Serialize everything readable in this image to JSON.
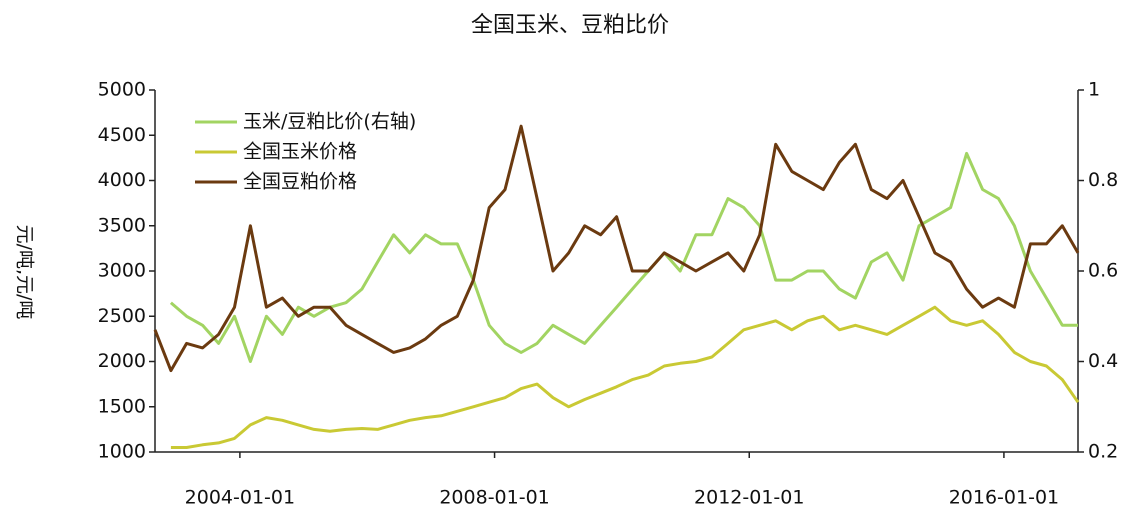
{
  "chart_data": {
    "type": "line",
    "title": "全国玉米、豆粕比价",
    "y_label": "元/吨,元/吨",
    "x": [
      "2002-09-01",
      "2002-12-01",
      "2003-03-01",
      "2003-06-01",
      "2003-09-01",
      "2003-12-01",
      "2004-03-01",
      "2004-06-01",
      "2004-09-01",
      "2004-12-01",
      "2005-03-01",
      "2005-06-01",
      "2005-09-01",
      "2005-12-01",
      "2006-03-01",
      "2006-06-01",
      "2006-09-01",
      "2006-12-01",
      "2007-03-01",
      "2007-06-01",
      "2007-09-01",
      "2007-12-01",
      "2008-03-01",
      "2008-06-01",
      "2008-09-01",
      "2008-12-01",
      "2009-03-01",
      "2009-06-01",
      "2009-09-01",
      "2009-12-01",
      "2010-03-01",
      "2010-06-01",
      "2010-09-01",
      "2010-12-01",
      "2011-03-01",
      "2011-06-01",
      "2011-09-01",
      "2011-12-01",
      "2012-03-01",
      "2012-06-01",
      "2012-09-01",
      "2012-12-01",
      "2013-03-01",
      "2013-06-01",
      "2013-09-01",
      "2013-12-01",
      "2014-03-01",
      "2014-06-01",
      "2014-09-01",
      "2014-12-01",
      "2015-03-01",
      "2015-06-01",
      "2015-09-01",
      "2015-12-01",
      "2016-03-01",
      "2016-06-01",
      "2016-09-01",
      "2016-12-01",
      "2017-03-01"
    ],
    "series": [
      {
        "name": "玉米/豆粕比价(右轴)",
        "color": "#a2d462",
        "axis": "y2",
        "values": [
          null,
          0.53,
          0.5,
          0.48,
          0.44,
          0.5,
          0.4,
          0.5,
          0.46,
          0.52,
          0.5,
          0.52,
          0.53,
          0.56,
          0.62,
          0.68,
          0.64,
          0.68,
          0.66,
          0.66,
          0.58,
          0.48,
          0.44,
          0.42,
          0.44,
          0.48,
          0.46,
          0.44,
          0.48,
          0.52,
          0.56,
          0.6,
          0.64,
          0.6,
          0.68,
          0.68,
          0.76,
          0.74,
          0.7,
          0.58,
          0.58,
          0.6,
          0.6,
          0.56,
          0.54,
          0.62,
          0.64,
          0.58,
          0.7,
          0.72,
          0.74,
          0.86,
          0.78,
          0.76,
          0.7,
          0.6,
          0.54,
          0.48,
          0.48
        ]
      },
      {
        "name": "全国玉米价格",
        "color": "#c9c934",
        "values": [
          null,
          1050,
          1050,
          1080,
          1100,
          1150,
          1300,
          1380,
          1350,
          1300,
          1250,
          1230,
          1250,
          1260,
          1250,
          1300,
          1350,
          1380,
          1400,
          1450,
          1500,
          1550,
          1600,
          1700,
          1750,
          1600,
          1500,
          1580,
          1650,
          1720,
          1800,
          1850,
          1950,
          1980,
          2000,
          2050,
          2200,
          2350,
          2400,
          2450,
          2350,
          2450,
          2500,
          2350,
          2400,
          2350,
          2300,
          2400,
          2500,
          2600,
          2450,
          2400,
          2450,
          2300,
          2100,
          2000,
          1950,
          1800,
          1550
        ]
      },
      {
        "name": "全国豆粕价格",
        "color": "#6b3a10",
        "values": [
          2350,
          1900,
          2200,
          2150,
          2300,
          2600,
          3500,
          2600,
          2700,
          2500,
          2600,
          2600,
          2400,
          2300,
          2200,
          2100,
          2150,
          2250,
          2400,
          2500,
          2900,
          3700,
          3900,
          4600,
          3800,
          3000,
          3200,
          3500,
          3400,
          3600,
          3000,
          3000,
          3200,
          3100,
          3000,
          3100,
          3200,
          3000,
          3400,
          4400,
          4100,
          4000,
          3900,
          4200,
          4400,
          3900,
          3800,
          4000,
          3600,
          3200,
          3100,
          2800,
          2600,
          2700,
          2600,
          3300,
          3300,
          3500,
          3200
        ]
      }
    ],
    "xlim": [
      "2002-09-01",
      "2017-03-01"
    ],
    "xticks": [
      "2004-01-01",
      "2008-01-01",
      "2012-01-01",
      "2016-01-01"
    ],
    "ylim": [
      1000,
      5000
    ],
    "yticks": [
      1000,
      1500,
      2000,
      2500,
      3000,
      3500,
      4000,
      4500,
      5000
    ],
    "y2lim": [
      0.2,
      1
    ],
    "y2ticks": [
      0.2,
      0.4,
      0.6,
      0.8,
      1
    ],
    "legend": "upper left"
  }
}
